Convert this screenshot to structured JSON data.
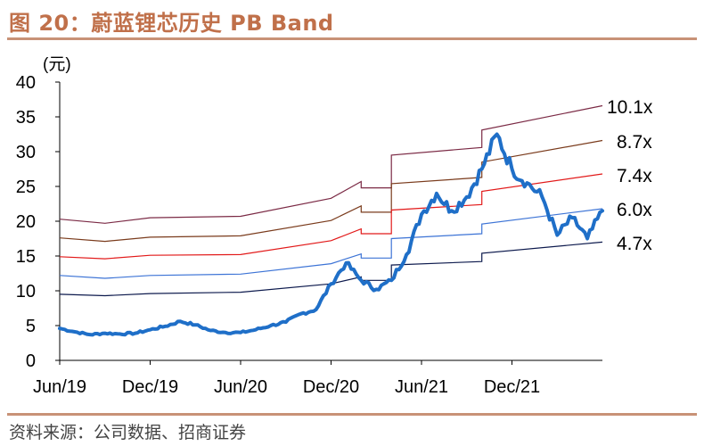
{
  "figure": {
    "title": "图 20：蔚蓝锂芯历史 PB Band",
    "source": "资料来源：公司数据、招商证券"
  },
  "chart_data": {
    "type": "line",
    "unit_label": "(元)",
    "ylim": [
      0,
      40
    ],
    "y_ticks": [
      "0",
      "5",
      "10",
      "15",
      "20",
      "25",
      "30",
      "35",
      "40"
    ],
    "x_ticks": [
      "Jun/19",
      "Dec/19",
      "Jun/20",
      "Dec/20",
      "Jun/21",
      "Dec/21"
    ],
    "band_labels": [
      "10.1x",
      "8.7x",
      "7.4x",
      "6.0x",
      "4.7x"
    ],
    "x_range": [
      "2019-06",
      "2022-06"
    ],
    "bands": [
      {
        "multiple": "10.1x",
        "color": "#7b2a45",
        "points": [
          [
            "2019-06",
            20.3
          ],
          [
            "2019-09",
            19.7
          ],
          [
            "2019-12",
            20.5
          ],
          [
            "2020-06",
            20.7
          ],
          [
            "2020-12",
            23.3
          ],
          [
            "2021-02",
            25.7
          ],
          [
            "2021-02",
            24.8
          ],
          [
            "2021-04",
            24.8
          ],
          [
            "2021-04",
            29.5
          ],
          [
            "2021-10",
            30.6
          ],
          [
            "2021-10",
            33.1
          ],
          [
            "2022-06",
            36.6
          ]
        ]
      },
      {
        "multiple": "8.7x",
        "color": "#7a3b1c",
        "points": [
          [
            "2019-06",
            17.6
          ],
          [
            "2019-09",
            17.1
          ],
          [
            "2019-12",
            17.7
          ],
          [
            "2020-06",
            17.9
          ],
          [
            "2020-12",
            20.1
          ],
          [
            "2021-02",
            22.2
          ],
          [
            "2021-02",
            21.3
          ],
          [
            "2021-04",
            21.3
          ],
          [
            "2021-04",
            25.4
          ],
          [
            "2021-10",
            26.3
          ],
          [
            "2021-10",
            28.5
          ],
          [
            "2022-06",
            31.6
          ]
        ]
      },
      {
        "multiple": "7.4x",
        "color": "#e21a1a",
        "points": [
          [
            "2019-06",
            14.9
          ],
          [
            "2019-09",
            14.6
          ],
          [
            "2019-12",
            15.1
          ],
          [
            "2020-06",
            15.2
          ],
          [
            "2020-12",
            17.2
          ],
          [
            "2021-02",
            18.9
          ],
          [
            "2021-02",
            18.2
          ],
          [
            "2021-04",
            18.2
          ],
          [
            "2021-04",
            21.6
          ],
          [
            "2021-10",
            22.4
          ],
          [
            "2021-10",
            24.3
          ],
          [
            "2022-06",
            26.8
          ]
        ]
      },
      {
        "multiple": "6.0x",
        "color": "#3d74d6",
        "points": [
          [
            "2019-06",
            12.2
          ],
          [
            "2019-09",
            11.8
          ],
          [
            "2019-12",
            12.2
          ],
          [
            "2020-06",
            12.4
          ],
          [
            "2020-12",
            13.9
          ],
          [
            "2021-02",
            15.3
          ],
          [
            "2021-02",
            14.7
          ],
          [
            "2021-04",
            14.7
          ],
          [
            "2021-04",
            17.5
          ],
          [
            "2021-10",
            18.2
          ],
          [
            "2021-10",
            19.6
          ],
          [
            "2022-06",
            21.8
          ]
        ]
      },
      {
        "multiple": "4.7x",
        "color": "#0d1a4d",
        "points": [
          [
            "2019-06",
            9.5
          ],
          [
            "2019-09",
            9.3
          ],
          [
            "2019-12",
            9.6
          ],
          [
            "2020-06",
            9.8
          ],
          [
            "2020-12",
            11.0
          ],
          [
            "2021-02",
            12.0
          ],
          [
            "2021-02",
            11.5
          ],
          [
            "2021-04",
            11.5
          ],
          [
            "2021-04",
            13.7
          ],
          [
            "2021-10",
            14.2
          ],
          [
            "2021-10",
            15.4
          ],
          [
            "2022-06",
            17.0
          ]
        ]
      }
    ],
    "price": {
      "color": "#1f6fc8",
      "points": [
        [
          "2019-06",
          4.6
        ],
        [
          "2019-07",
          4.1
        ],
        [
          "2019-08",
          3.7
        ],
        [
          "2019-09",
          3.9
        ],
        [
          "2019-10",
          3.8
        ],
        [
          "2019-11",
          3.9
        ],
        [
          "2019-12",
          4.4
        ],
        [
          "2020-01",
          4.9
        ],
        [
          "2020-02",
          5.6
        ],
        [
          "2020-03",
          5.1
        ],
        [
          "2020-04",
          4.3
        ],
        [
          "2020-05",
          4.0
        ],
        [
          "2020-06",
          4.0
        ],
        [
          "2020-07",
          4.4
        ],
        [
          "2020-08",
          5.0
        ],
        [
          "2020-09",
          5.5
        ],
        [
          "2020-10",
          6.7
        ],
        [
          "2020-11",
          7.3
        ],
        [
          "2020-12",
          11.0
        ],
        [
          "2021-01",
          14.0
        ],
        [
          "2021-02",
          11.5
        ],
        [
          "2021-03",
          10.2
        ],
        [
          "2021-04",
          11.5
        ],
        [
          "2021-05",
          15.2
        ],
        [
          "2021-06",
          21.0
        ],
        [
          "2021-07",
          24.0
        ],
        [
          "2021-08",
          21.5
        ],
        [
          "2021-09",
          23.5
        ],
        [
          "2021-10",
          27.5
        ],
        [
          "2021-11",
          32.5
        ],
        [
          "2021-12",
          27.5
        ],
        [
          "2022-01",
          25.5
        ],
        [
          "2022-02",
          23.5
        ],
        [
          "2022-03",
          18.0
        ],
        [
          "2022-04",
          20.5
        ],
        [
          "2022-05",
          17.5
        ],
        [
          "2022-06",
          21.5
        ]
      ]
    }
  }
}
